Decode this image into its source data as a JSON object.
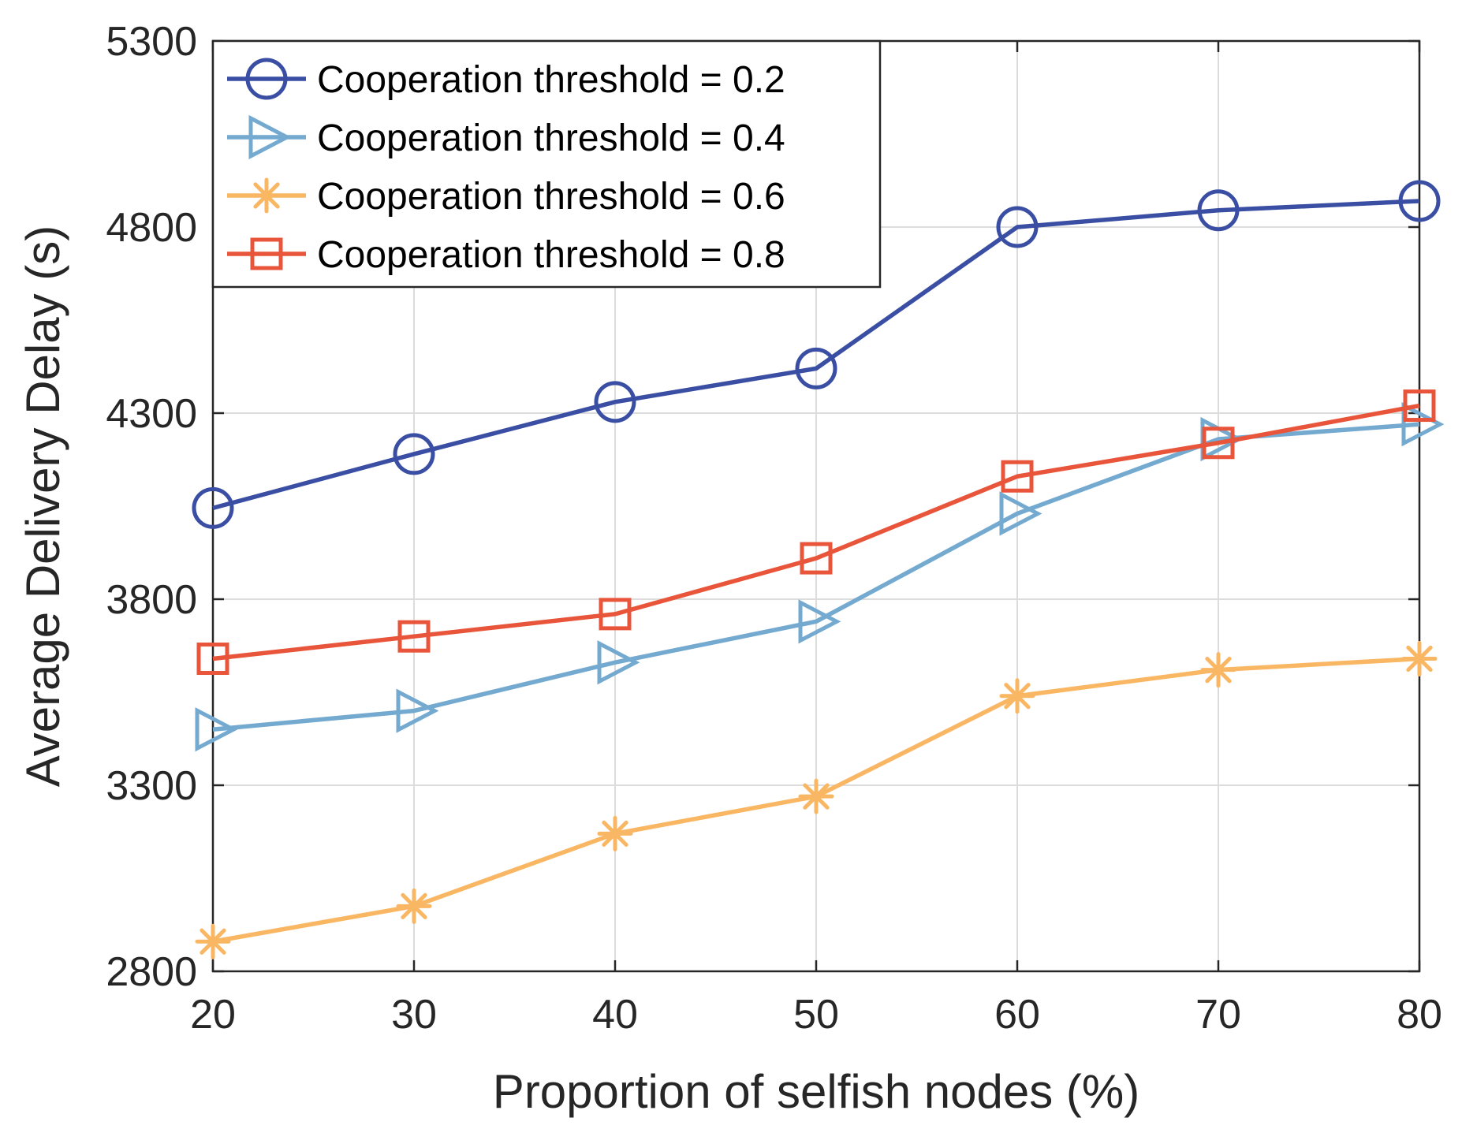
{
  "chart_data": {
    "type": "line",
    "title": "",
    "xlabel": "Proportion of selfish nodes (%)",
    "ylabel": "Average Delivery Delay (s)",
    "x": [
      20,
      30,
      40,
      50,
      60,
      70,
      80
    ],
    "xlim": [
      20,
      80
    ],
    "ylim": [
      2800,
      5300
    ],
    "xticks": [
      20,
      30,
      40,
      50,
      60,
      70,
      80
    ],
    "yticks": [
      2800,
      3300,
      3800,
      4300,
      4800,
      5300
    ],
    "xtick_labels": [
      "20",
      "30",
      "40",
      "50",
      "60",
      "70",
      "80"
    ],
    "ytick_labels": [
      "2800",
      "3300",
      "3800",
      "4300",
      "4800",
      "5300"
    ],
    "grid": true,
    "legend_position": "top-left",
    "series": [
      {
        "name": "Cooperation threshold = 0.2",
        "marker": "circle",
        "color": "#3a4fa3",
        "values": [
          4045,
          4190,
          4330,
          4420,
          4800,
          4845,
          4870
        ]
      },
      {
        "name": "Cooperation threshold = 0.4",
        "marker": "triangle-right",
        "color": "#74a9d0",
        "values": [
          3450,
          3500,
          3630,
          3740,
          4030,
          4230,
          4270
        ]
      },
      {
        "name": "Cooperation threshold = 0.6",
        "marker": "asterisk",
        "color": "#f9b764",
        "values": [
          2880,
          2975,
          3170,
          3270,
          3540,
          3610,
          3640
        ]
      },
      {
        "name": "Cooperation threshold = 0.8",
        "marker": "square",
        "color": "#e8553a",
        "values": [
          3640,
          3700,
          3760,
          3910,
          4130,
          4220,
          4320
        ]
      }
    ]
  }
}
